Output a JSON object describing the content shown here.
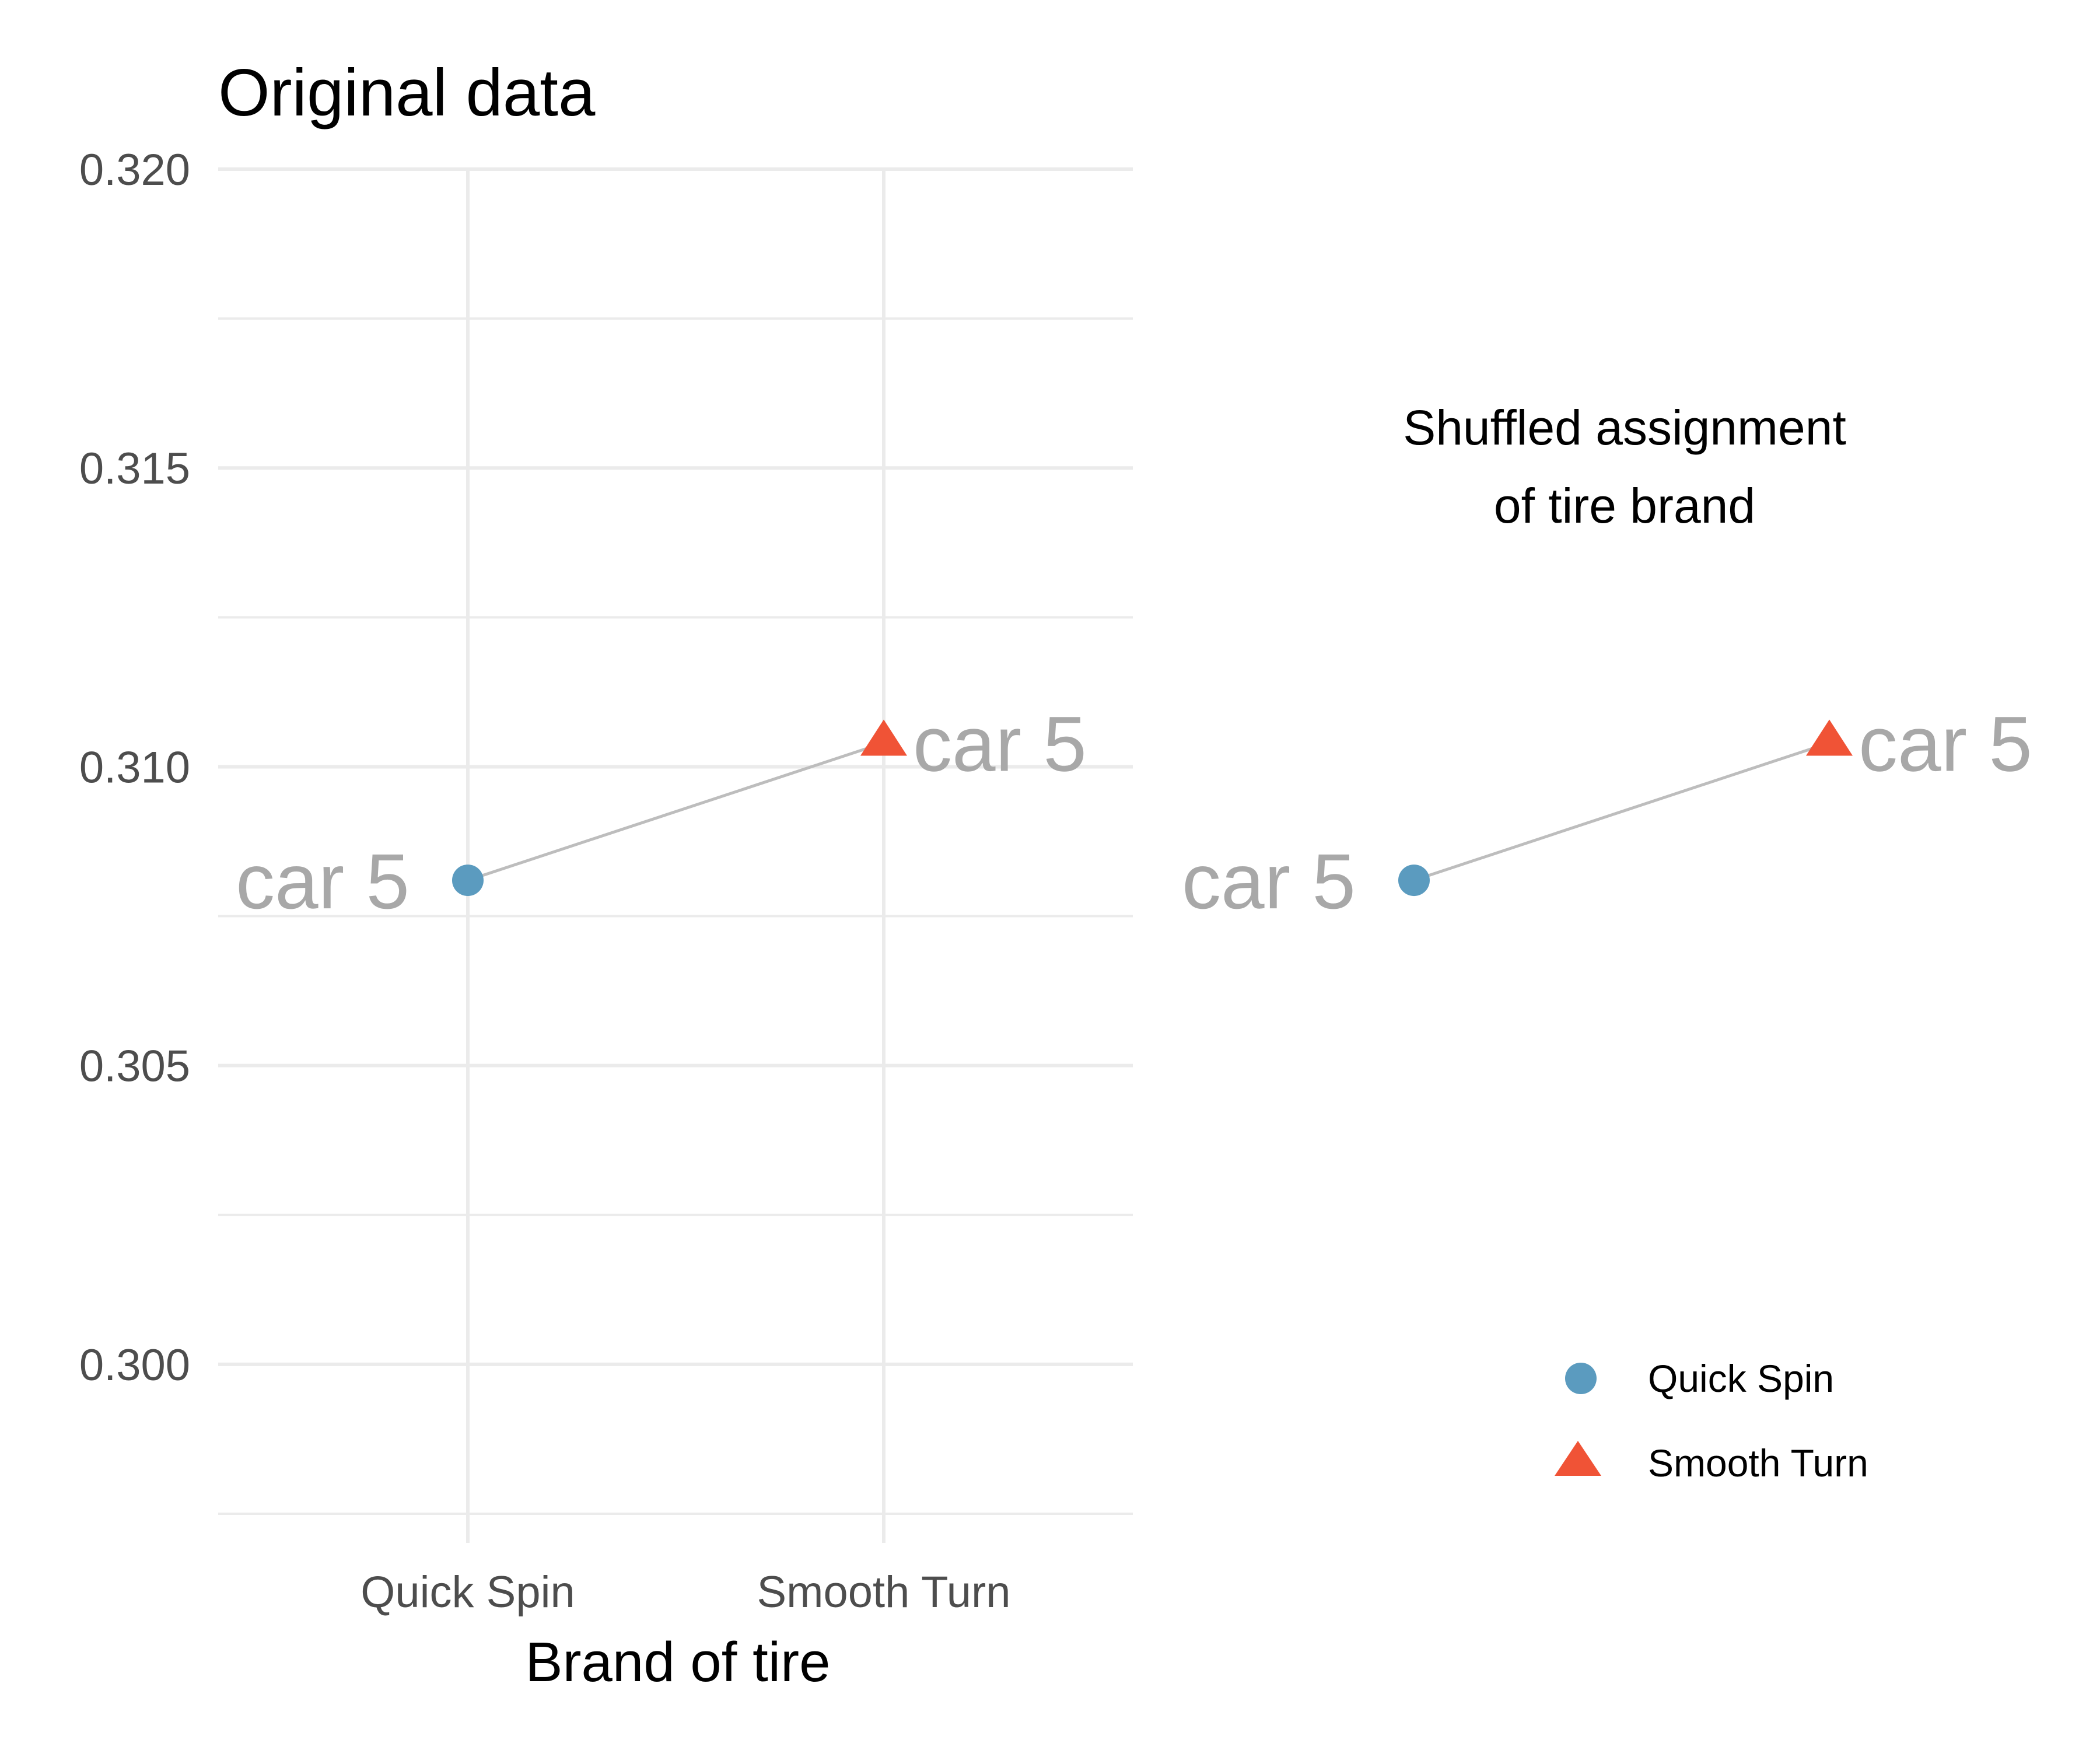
{
  "chart_data": [
    {
      "type": "line",
      "title": "Original data",
      "xlabel": "Brand of tire",
      "ylabel": "",
      "categories": [
        "Quick Spin",
        "Smooth Turn"
      ],
      "ylim": [
        0.2975,
        0.32
      ],
      "yticks": [
        0.3,
        0.305,
        0.31,
        0.315,
        0.32
      ],
      "ytick_labels": [
        "0.300",
        "0.305",
        "0.310",
        "0.315",
        "0.320"
      ],
      "grid": true,
      "series": [
        {
          "label": "car 5",
          "points": [
            {
              "brand": "Quick Spin",
              "value": 0.3081,
              "label": "car 5"
            },
            {
              "brand": "Smooth Turn",
              "value": 0.3104,
              "label": "car 5"
            }
          ]
        }
      ]
    },
    {
      "type": "line",
      "annotation": [
        "Shuffled assignment",
        "of tire brand"
      ],
      "categories": [
        "Quick Spin",
        "Smooth Turn"
      ],
      "ylim": [
        0.2975,
        0.32
      ],
      "grid": false,
      "series": [
        {
          "label": "car 5",
          "points": [
            {
              "brand": "Quick Spin",
              "value": 0.3081,
              "label": "car 5"
            },
            {
              "brand": "Smooth Turn",
              "value": 0.3104,
              "label": "car 5"
            }
          ]
        }
      ]
    }
  ],
  "legend": {
    "placement": "bottom-right",
    "items": [
      {
        "label": "Quick Spin",
        "shape": "circle",
        "color": "#5b9bbf"
      },
      {
        "label": "Smooth Turn",
        "shape": "triangle",
        "color": "#f05336"
      }
    ]
  },
  "colors": {
    "quick_spin": "#5b9bbf",
    "smooth_turn": "#f05336",
    "connector": "#bdbdbd",
    "point_label": "#a8a8a8"
  }
}
